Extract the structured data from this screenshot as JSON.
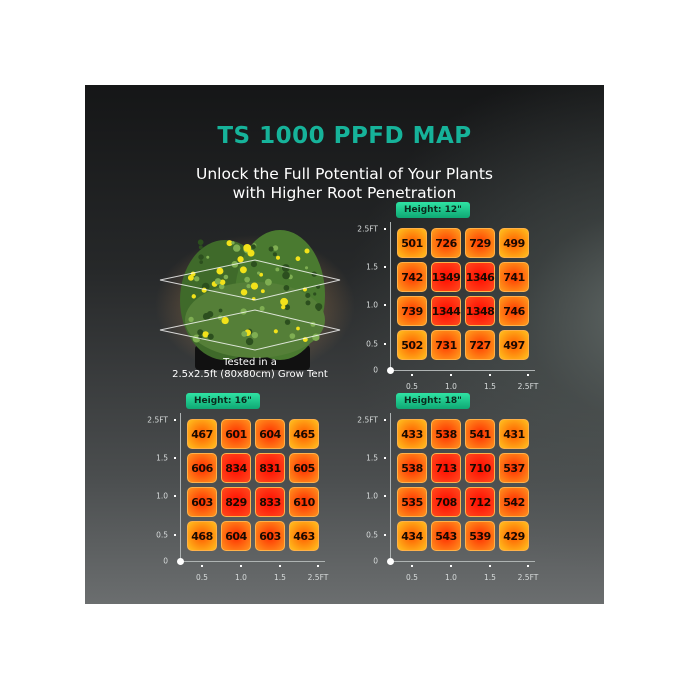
{
  "header": {
    "title": "TS 1000 PPFD MAP",
    "subtitle_line1": "Unlock the Full Potential of Your Plants",
    "subtitle_line2": "with Higher Root Penetration"
  },
  "plant": {
    "caption_line1": "Tested in a",
    "caption_line2": "2.5x2.5ft (80x80cm) Grow Tent"
  },
  "colors": {
    "title": "#16b39a",
    "badge": "#1fc98a",
    "cell_low": "#ff9a1a",
    "cell_high": "#ff1a00"
  },
  "chart_data": [
    {
      "type": "heatmap",
      "title": "Height: 12\"",
      "x_ticks": [
        "0.5",
        "1.0",
        "1.5",
        "2.5FT"
      ],
      "y_ticks": [
        "2.5FT",
        "1.5",
        "1.0",
        "0.5"
      ],
      "origin": "0",
      "values": [
        [
          501,
          726,
          729,
          499
        ],
        [
          742,
          1349,
          1346,
          741
        ],
        [
          739,
          1344,
          1348,
          746
        ],
        [
          502,
          731,
          727,
          497
        ]
      ]
    },
    {
      "type": "heatmap",
      "title": "Height: 16\"",
      "x_ticks": [
        "0.5",
        "1.0",
        "1.5",
        "2.5FT"
      ],
      "y_ticks": [
        "2.5FT",
        "1.5",
        "1.0",
        "0.5"
      ],
      "origin": "0",
      "values": [
        [
          467,
          601,
          604,
          465
        ],
        [
          606,
          834,
          831,
          605
        ],
        [
          603,
          829,
          833,
          610
        ],
        [
          468,
          604,
          603,
          463
        ]
      ]
    },
    {
      "type": "heatmap",
      "title": "Height: 18\"",
      "x_ticks": [
        "0.5",
        "1.0",
        "1.5",
        "2.5FT"
      ],
      "y_ticks": [
        "2.5FT",
        "1.5",
        "1.0",
        "0.5"
      ],
      "origin": "0",
      "values": [
        [
          433,
          538,
          541,
          431
        ],
        [
          538,
          713,
          710,
          537
        ],
        [
          535,
          708,
          712,
          542
        ],
        [
          434,
          543,
          539,
          429
        ]
      ]
    }
  ]
}
